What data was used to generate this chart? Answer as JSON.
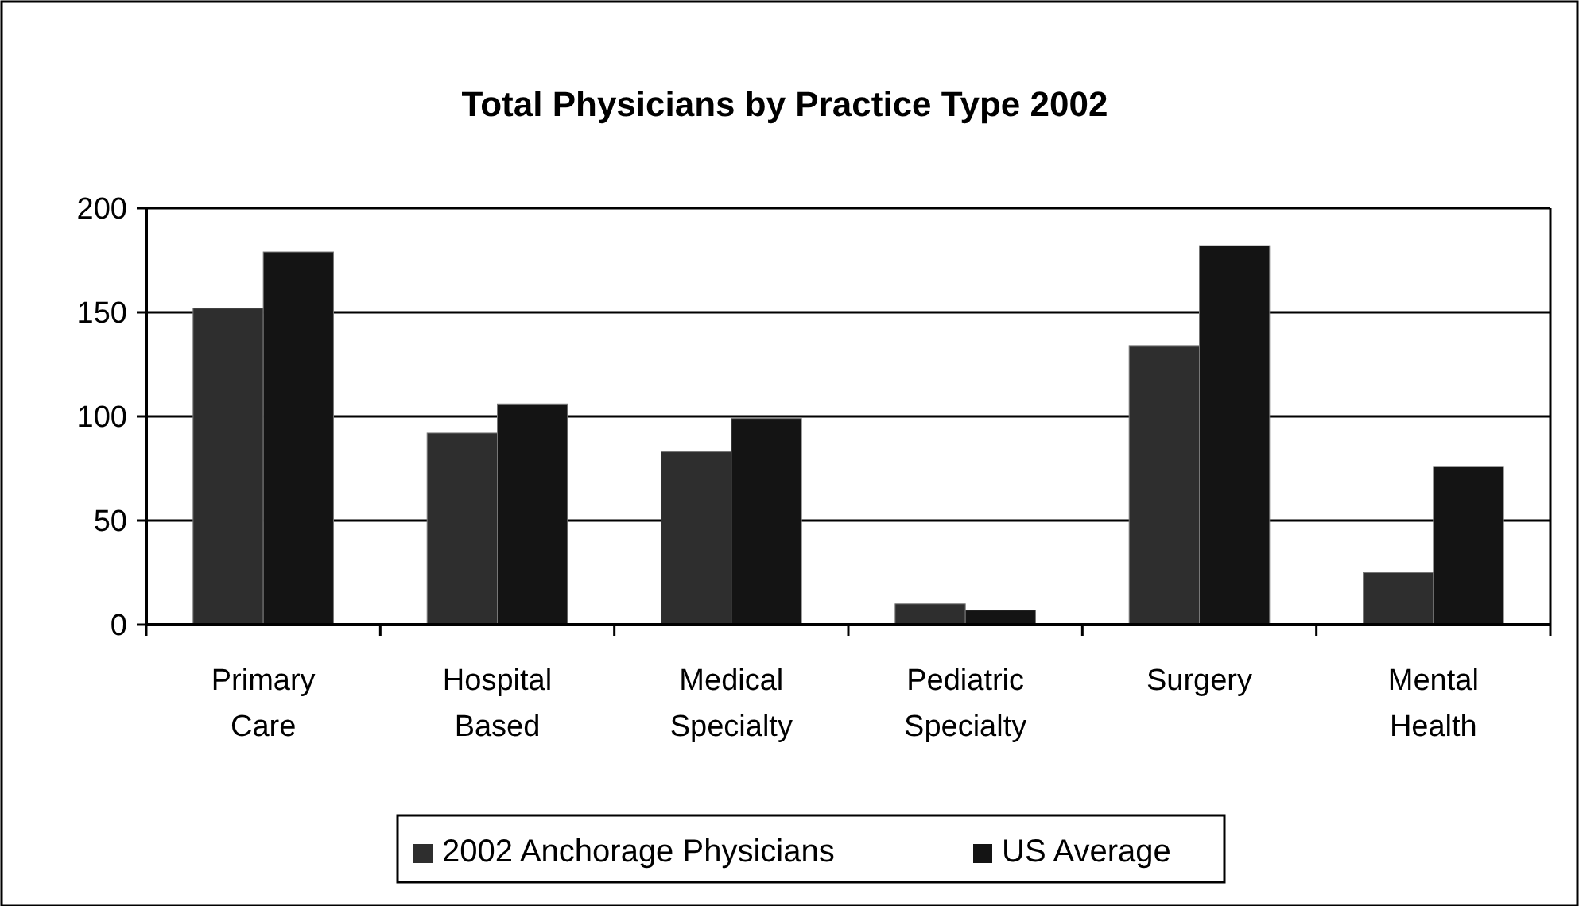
{
  "chart_data": {
    "type": "bar",
    "title": "Total Physicians by Practice Type 2002",
    "categories": [
      "Primary Care",
      "Hospital Based",
      "Medical Specialty",
      "Pediatric Specialty",
      "Surgery",
      "Mental Health"
    ],
    "series": [
      {
        "name": "2002 Anchorage Physicians",
        "color": "#2e2e2e",
        "values": [
          152,
          92,
          83,
          10,
          134,
          25
        ]
      },
      {
        "name": "US Average",
        "color": "#141414",
        "values": [
          179,
          106,
          99,
          7,
          182,
          76
        ]
      }
    ],
    "ylim": [
      0,
      200
    ],
    "yticks": [
      0,
      50,
      100,
      150,
      200
    ],
    "grid": "y",
    "legend": "bottom"
  }
}
